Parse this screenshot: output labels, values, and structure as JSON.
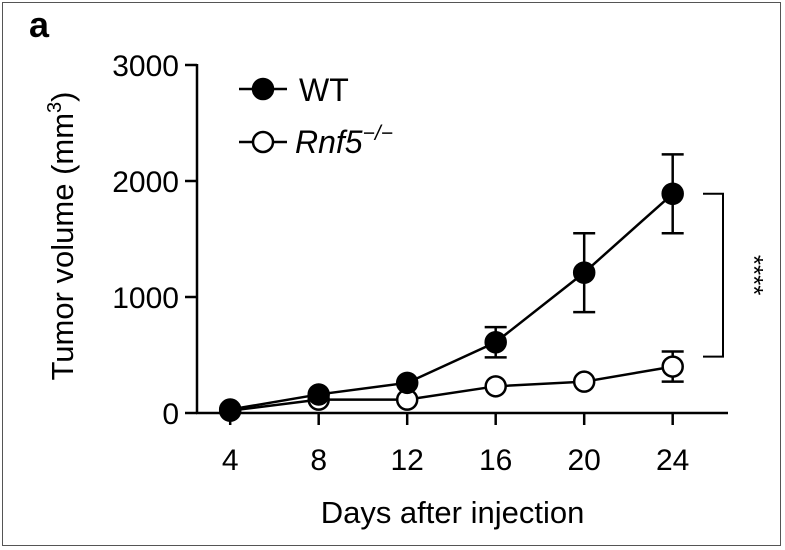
{
  "panel_label": "a",
  "chart_data": {
    "type": "line",
    "title": "",
    "xlabel": "Days after injection",
    "ylabel": "Tumor volume (mm",
    "ylabel_superscript": "3",
    "ylabel_suffix": ")",
    "x": [
      4,
      8,
      12,
      16,
      20,
      24
    ],
    "xticks": [
      "4",
      "8",
      "12",
      "16",
      "20",
      "24"
    ],
    "yticks": [
      "0",
      "1000",
      "2000",
      "3000"
    ],
    "ylim": [
      0,
      3000
    ],
    "xlim": [
      2.5,
      26.5
    ],
    "legend_position": "top-left",
    "series": [
      {
        "name": "WT",
        "marker": "filled-circle",
        "values": [
          30,
          160,
          260,
          610,
          1210,
          1890
        ],
        "error": [
          15,
          30,
          40,
          130,
          340,
          340
        ]
      },
      {
        "name": "Rnf5",
        "name_superscript": "−/−",
        "marker": "open-circle",
        "values": [
          20,
          115,
          115,
          230,
          270,
          400
        ],
        "error": [
          10,
          20,
          30,
          40,
          60,
          130
        ]
      }
    ],
    "annotations": [
      {
        "text": "****",
        "between_series": [
          "WT",
          "Rnf5"
        ],
        "at_x": 24
      }
    ]
  }
}
